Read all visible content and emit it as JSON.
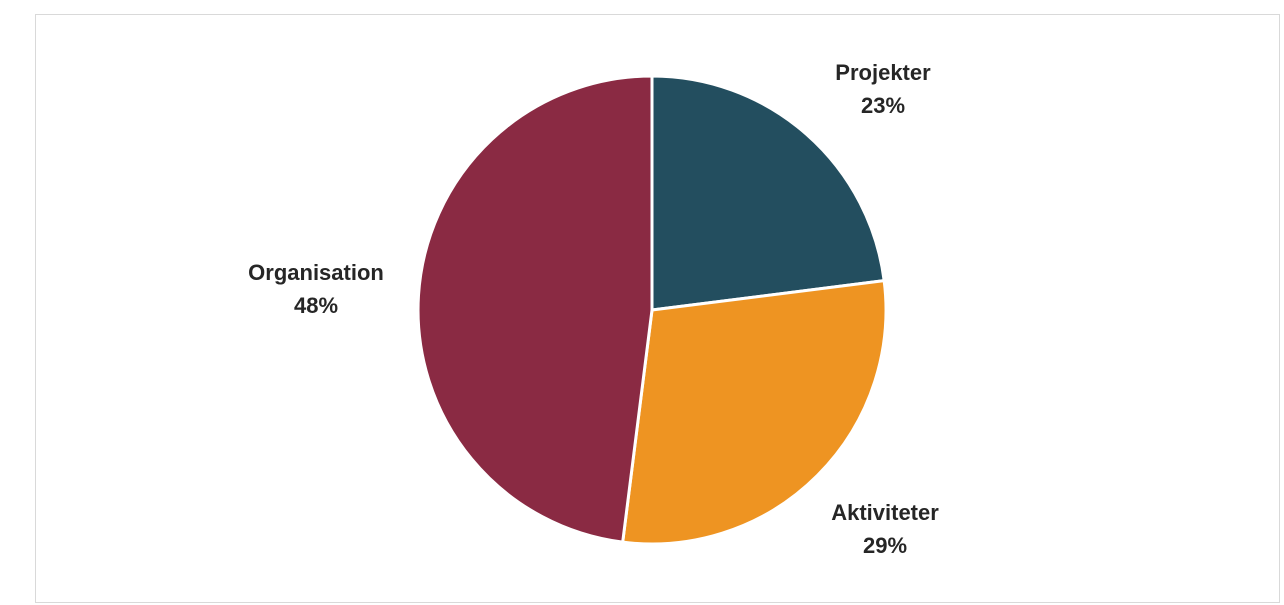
{
  "chart_data": {
    "type": "pie",
    "title": "",
    "start_angle_deg": 0,
    "direction": "clockwise",
    "slices": [
      {
        "label": "Projekter",
        "value": 23,
        "value_label": "23%",
        "color": "#234e5f"
      },
      {
        "label": "Aktiviteter",
        "value": 29,
        "value_label": "29%",
        "color": "#ee9422"
      },
      {
        "label": "Organisation",
        "value": 48,
        "value_label": "48%",
        "color": "#8a2a43"
      }
    ],
    "legend": "none",
    "slice_border_color": "#ffffff"
  }
}
